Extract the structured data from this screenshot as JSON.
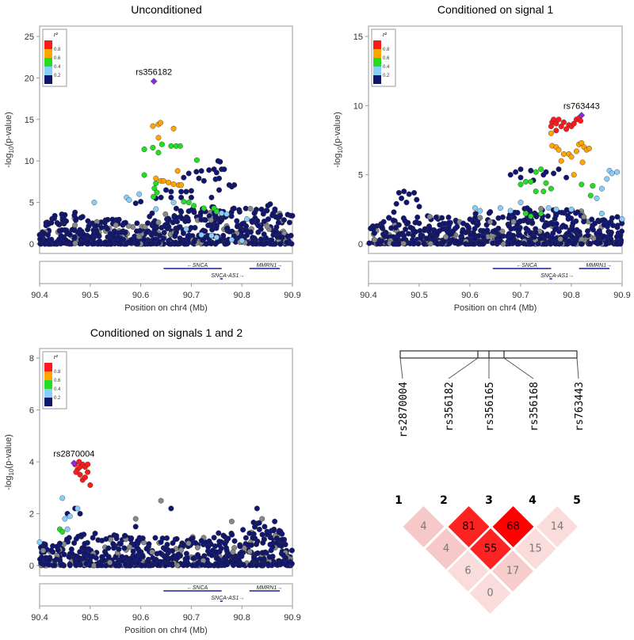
{
  "colors": {
    "navy": "#101570",
    "lightblue": "#87cefa",
    "green": "#22dd22",
    "orange": "#ffa500",
    "red": "#ff1a1a",
    "grey": "#888888",
    "lead": "#8a2be2"
  },
  "chart_data": [
    {
      "type": "scatter",
      "title": "Unconditioned",
      "xlabel": "Position on chr4 (Mb)",
      "ylabel": "-log10(p-value)",
      "xlim": [
        90.4,
        90.9
      ],
      "ylim": [
        0,
        25
      ],
      "xticks": [
        "90.4",
        "90.5",
        "90.6",
        "90.7",
        "90.8",
        "90.9"
      ],
      "yticks": [
        "0",
        "5",
        "10",
        "15",
        "20",
        "25"
      ],
      "legend": {
        "title": "r²",
        "labels": [
          "0.8",
          "0.6",
          "0.4",
          "0.2"
        ],
        "placement": "top-left"
      },
      "lead": {
        "label": "rs356182",
        "x": 90.626,
        "y": 19.6
      },
      "genes": [
        {
          "name": "←SNCA",
          "start": 90.645,
          "end": 90.76,
          "row": 0
        },
        {
          "name": "SNCA-AS1→",
          "start": 90.757,
          "end": 90.762,
          "row": 1
        },
        {
          "name": "MMRN1→",
          "start": 90.815,
          "end": 90.875,
          "row": 0
        }
      ],
      "points": {
        "orange": [
          [
            90.624,
            14.2
          ],
          [
            90.635,
            14.4
          ],
          [
            90.639,
            14.6
          ],
          [
            90.665,
            13.9
          ],
          [
            90.635,
            12.8
          ],
          [
            90.673,
            8.8
          ],
          [
            90.63,
            7.9
          ],
          [
            90.64,
            7.6
          ],
          [
            90.645,
            7.6
          ],
          [
            90.655,
            7.4
          ],
          [
            90.665,
            7.2
          ],
          [
            90.675,
            7.1
          ],
          [
            90.68,
            7.1
          ]
        ],
        "green": [
          [
            90.607,
            11.4
          ],
          [
            90.624,
            11.6
          ],
          [
            90.642,
            12.0
          ],
          [
            90.635,
            11.0
          ],
          [
            90.66,
            11.8
          ],
          [
            90.67,
            11.8
          ],
          [
            90.678,
            11.8
          ],
          [
            90.607,
            8.3
          ],
          [
            90.63,
            7.3
          ],
          [
            90.627,
            6.7
          ],
          [
            90.632,
            6.2
          ],
          [
            90.625,
            5.7
          ],
          [
            90.711,
            10.1
          ],
          [
            90.685,
            5.1
          ],
          [
            90.695,
            5.0
          ],
          [
            90.705,
            4.6
          ],
          [
            90.725,
            4.3
          ],
          [
            90.745,
            4.3
          ],
          [
            90.75,
            3.9
          ]
        ],
        "lightblue": [
          [
            90.508,
            5.0
          ],
          [
            90.572,
            5.6
          ],
          [
            90.577,
            5.3
          ],
          [
            90.597,
            6.0
          ],
          [
            90.665,
            5.0
          ],
          [
            90.63,
            4.2
          ],
          [
            90.69,
            1.8
          ],
          [
            90.72,
            1.1
          ],
          [
            90.75,
            0.8
          ],
          [
            90.77,
            3.6
          ],
          [
            90.81,
            3.0
          ],
          [
            90.78,
            0.5
          ],
          [
            90.8,
            0.4
          ],
          [
            90.74,
            1.0
          ],
          [
            90.76,
            3.7
          ]
        ],
        "navy": [
          [
            90.685,
            8.0
          ],
          [
            90.695,
            8.5
          ],
          [
            90.71,
            8.7
          ],
          [
            90.72,
            8.8
          ],
          [
            90.735,
            8.9
          ],
          [
            90.745,
            9.0
          ],
          [
            90.753,
            10.0
          ],
          [
            90.757,
            9.9
          ],
          [
            90.76,
            9.0
          ],
          [
            90.765,
            9.0
          ],
          [
            90.75,
            8.6
          ],
          [
            90.748,
            7.8
          ],
          [
            90.755,
            7.9
          ],
          [
            90.775,
            7.1
          ],
          [
            90.78,
            6.9
          ],
          [
            90.785,
            7.1
          ],
          [
            90.715,
            7.9
          ],
          [
            90.725,
            7.6
          ],
          [
            90.7,
            6.4
          ],
          [
            90.69,
            6.3
          ],
          [
            90.68,
            6.3
          ],
          [
            90.66,
            6.3
          ],
          [
            90.65,
            6.5
          ],
          [
            90.64,
            5.6
          ],
          [
            90.66,
            5.6
          ],
          [
            90.68,
            5.6
          ],
          [
            90.7,
            5.6
          ],
          [
            90.74,
            5.6
          ],
          [
            90.755,
            6.5
          ],
          [
            90.6,
            5.1
          ],
          [
            90.63,
            5.5
          ],
          [
            90.45,
            3.5
          ],
          [
            90.47,
            3.8
          ],
          [
            90.43,
            3.4
          ],
          [
            90.59,
            4.9
          ],
          [
            90.856,
            4.8
          ],
          [
            90.9,
            3.4
          ]
        ],
        "grey": [
          [
            90.635,
            2.6
          ],
          [
            90.85,
            2.1
          ],
          [
            90.75,
            4.0
          ]
        ]
      },
      "background_envelope": [
        [
          90.4,
          2.3
        ],
        [
          90.43,
          3.5
        ],
        [
          90.47,
          3.8
        ],
        [
          90.5,
          3.0
        ],
        [
          90.55,
          3.2
        ],
        [
          90.6,
          2.5
        ],
        [
          90.62,
          4.2
        ],
        [
          90.7,
          4.5
        ],
        [
          90.8,
          4.4
        ],
        [
          90.86,
          4.8
        ],
        [
          90.9,
          3.4
        ]
      ]
    },
    {
      "type": "scatter",
      "title": "Conditioned on signal 1",
      "xlabel": "Position on chr4 (Mb)",
      "ylabel": "-log10(p-value)",
      "xlim": [
        90.4,
        90.9
      ],
      "ylim": [
        0,
        15
      ],
      "xticks": [
        "90.4",
        "90.5",
        "90.6",
        "90.7",
        "90.8",
        "90.9"
      ],
      "yticks": [
        "0",
        "5",
        "10",
        "15"
      ],
      "legend": {
        "title": "r²",
        "labels": [
          "0.8",
          "0.6",
          "0.4",
          "0.2"
        ],
        "placement": "top-left"
      },
      "lead": {
        "label": "rs763443",
        "x": 90.82,
        "y": 9.3
      },
      "genes": [
        {
          "name": "←SNCA",
          "start": 90.645,
          "end": 90.76,
          "row": 0
        },
        {
          "name": "SNCA-AS1→",
          "start": 90.757,
          "end": 90.762,
          "row": 1
        },
        {
          "name": "MMRN1→",
          "start": 90.815,
          "end": 90.875,
          "row": 0
        }
      ],
      "points": {
        "red": [
          [
            90.762,
            8.8
          ],
          [
            90.765,
            9.0
          ],
          [
            90.77,
            8.7
          ],
          [
            90.775,
            9.0
          ],
          [
            90.78,
            8.5
          ],
          [
            90.785,
            8.8
          ],
          [
            90.79,
            8.3
          ],
          [
            90.795,
            8.6
          ],
          [
            90.8,
            8.5
          ],
          [
            90.805,
            8.7
          ],
          [
            90.81,
            9.0
          ],
          [
            90.815,
            9.1
          ],
          [
            90.818,
            8.9
          ],
          [
            90.77,
            8.2
          ],
          [
            90.76,
            8.5
          ]
        ],
        "orange": [
          [
            90.762,
            7.1
          ],
          [
            90.77,
            7.0
          ],
          [
            90.775,
            6.8
          ],
          [
            90.785,
            6.5
          ],
          [
            90.795,
            6.5
          ],
          [
            90.8,
            6.3
          ],
          [
            90.81,
            6.7
          ],
          [
            90.815,
            7.2
          ],
          [
            90.82,
            7.3
          ],
          [
            90.825,
            7.0
          ],
          [
            90.83,
            6.8
          ],
          [
            90.835,
            6.9
          ],
          [
            90.822,
            5.9
          ],
          [
            90.805,
            5.0
          ],
          [
            90.76,
            8.0
          ],
          [
            90.78,
            6.0
          ]
        ],
        "green": [
          [
            90.74,
            5.4
          ],
          [
            90.73,
            5.2
          ],
          [
            90.72,
            4.5
          ],
          [
            90.71,
            4.5
          ],
          [
            90.7,
            4.3
          ],
          [
            90.75,
            4.4
          ],
          [
            90.76,
            4.0
          ],
          [
            90.745,
            3.8
          ],
          [
            90.73,
            3.8
          ],
          [
            90.72,
            2.0
          ],
          [
            90.71,
            2.2
          ],
          [
            90.74,
            2.2
          ],
          [
            90.82,
            4.3
          ],
          [
            90.842,
            4.2
          ],
          [
            90.838,
            3.5
          ]
        ],
        "lightblue": [
          [
            90.61,
            2.6
          ],
          [
            90.62,
            2.4
          ],
          [
            90.66,
            2.6
          ],
          [
            90.68,
            2.4
          ],
          [
            90.7,
            3.0
          ],
          [
            90.755,
            2.6
          ],
          [
            90.77,
            2.5
          ],
          [
            90.8,
            2.5
          ],
          [
            90.85,
            3.3
          ],
          [
            90.86,
            4.0
          ],
          [
            90.875,
            5.3
          ],
          [
            90.88,
            5.1
          ],
          [
            90.89,
            5.2
          ],
          [
            90.87,
            4.7
          ],
          [
            90.86,
            2.2
          ],
          [
            90.9,
            1.8
          ]
        ],
        "navy": [
          [
            90.46,
            3.7
          ],
          [
            90.47,
            3.8
          ],
          [
            90.48,
            3.6
          ],
          [
            90.49,
            3.7
          ],
          [
            90.465,
            3.3
          ],
          [
            90.475,
            3.0
          ],
          [
            90.455,
            2.9
          ],
          [
            90.45,
            2.3
          ],
          [
            90.44,
            1.9
          ],
          [
            90.43,
            1.6
          ],
          [
            90.495,
            3.2
          ],
          [
            90.5,
            2.7
          ],
          [
            90.68,
            5.0
          ],
          [
            90.69,
            5.2
          ],
          [
            90.7,
            5.4
          ],
          [
            90.72,
            5.3
          ],
          [
            90.745,
            5.0
          ],
          [
            90.75,
            5.2
          ],
          [
            90.765,
            5.1
          ],
          [
            90.775,
            5.4
          ],
          [
            90.79,
            4.8
          ],
          [
            90.7,
            4.8
          ],
          [
            90.725,
            4.6
          ]
        ],
        "grey": [
          [
            90.62,
            1.9
          ],
          [
            90.64,
            1.6
          ]
        ]
      },
      "background_envelope": [
        [
          90.4,
          1.5
        ],
        [
          90.44,
          2.0
        ],
        [
          90.5,
          2.0
        ],
        [
          90.6,
          2.2
        ],
        [
          90.7,
          2.6
        ],
        [
          90.8,
          2.6
        ],
        [
          90.9,
          2.0
        ]
      ]
    },
    {
      "type": "scatter",
      "title": "Conditioned on signals 1 and 2",
      "xlabel": "Position on chr4 (Mb)",
      "ylabel": "-log10(p-value)",
      "xlim": [
        90.4,
        90.9
      ],
      "ylim": [
        0,
        8
      ],
      "xticks": [
        "90.4",
        "90.5",
        "90.6",
        "90.7",
        "90.8",
        "90.9"
      ],
      "yticks": [
        "0",
        "2",
        "4",
        "6",
        "8"
      ],
      "legend": {
        "title": "r²",
        "labels": [
          "0.8",
          "0.6",
          "0.4",
          "0.2"
        ],
        "placement": "top-left"
      },
      "lead": {
        "label": "rs2870004",
        "x": 90.468,
        "y": 3.95
      },
      "genes": [
        {
          "name": "←SNCA",
          "start": 90.645,
          "end": 90.76,
          "row": 0
        },
        {
          "name": "SNCA-AS1→",
          "start": 90.757,
          "end": 90.762,
          "row": 1
        },
        {
          "name": "MMRN1→",
          "start": 90.815,
          "end": 90.875,
          "row": 0
        }
      ],
      "points": {
        "red": [
          [
            90.47,
            3.9
          ],
          [
            90.475,
            3.7
          ],
          [
            90.48,
            3.8
          ],
          [
            90.485,
            3.9
          ],
          [
            90.49,
            3.8
          ],
          [
            90.495,
            3.6
          ],
          [
            90.48,
            3.5
          ],
          [
            90.485,
            3.3
          ],
          [
            90.49,
            3.4
          ],
          [
            90.5,
            3.1
          ],
          [
            90.478,
            4.0
          ],
          [
            90.495,
            3.9
          ],
          [
            90.472,
            3.6
          ]
        ],
        "green": [
          [
            90.44,
            1.4
          ],
          [
            90.445,
            1.3
          ]
        ],
        "lightblue": [
          [
            90.445,
            2.6
          ],
          [
            90.45,
            1.8
          ],
          [
            90.46,
            1.9
          ],
          [
            90.4,
            0.9
          ],
          [
            90.475,
            2.2
          ],
          [
            90.455,
            1.4
          ]
        ],
        "navy": [
          [
            90.455,
            2.0
          ],
          [
            90.47,
            2.2
          ],
          [
            90.48,
            2.0
          ],
          [
            90.59,
            1.5
          ],
          [
            90.66,
            2.2
          ],
          [
            90.83,
            2.2
          ],
          [
            90.865,
            1.7
          ],
          [
            90.88,
            1.0
          ],
          [
            90.845,
            1.5
          ],
          [
            90.85,
            1.2
          ]
        ],
        "grey": [
          [
            90.64,
            2.5
          ],
          [
            90.59,
            1.8
          ],
          [
            90.78,
            1.7
          ],
          [
            90.84,
            1.8
          ],
          [
            90.68,
            0.6
          ]
        ]
      },
      "background_envelope": [
        [
          90.4,
          0.8
        ],
        [
          90.5,
          1.3
        ],
        [
          90.6,
          1.1
        ],
        [
          90.7,
          1.1
        ],
        [
          90.8,
          1.4
        ],
        [
          90.85,
          2.0
        ],
        [
          90.9,
          0.8
        ]
      ]
    },
    {
      "type": "heatmap",
      "title": "",
      "snps": [
        "rs2870004",
        "rs356182",
        "rs356165",
        "rs356168",
        "rs763443"
      ],
      "indices": [
        "1",
        "2",
        "3",
        "4",
        "5"
      ],
      "cells": [
        {
          "i": 1,
          "j": 2,
          "value": "4",
          "fill": "#f7c8c8",
          "text": "#777777"
        },
        {
          "i": 2,
          "j": 3,
          "value": "81",
          "fill": "#ff2222",
          "text": "#000000"
        },
        {
          "i": 3,
          "j": 4,
          "value": "68",
          "fill": "#ff0000",
          "text": "#000000"
        },
        {
          "i": 4,
          "j": 5,
          "value": "14",
          "fill": "#fbdcdc",
          "text": "#777777"
        },
        {
          "i": 1,
          "j": 3,
          "value": "4",
          "fill": "#f7c8c8",
          "text": "#777777"
        },
        {
          "i": 2,
          "j": 4,
          "value": "55",
          "fill": "#ff2222",
          "text": "#000000"
        },
        {
          "i": 3,
          "j": 5,
          "value": "15",
          "fill": "#fbdcdc",
          "text": "#777777"
        },
        {
          "i": 1,
          "j": 4,
          "value": "6",
          "fill": "#fbdcdc",
          "text": "#777777"
        },
        {
          "i": 2,
          "j": 5,
          "value": "17",
          "fill": "#f7cccc",
          "text": "#777777"
        },
        {
          "i": 1,
          "j": 5,
          "value": "0",
          "fill": "#fbdcdc",
          "text": "#777777"
        }
      ]
    }
  ]
}
